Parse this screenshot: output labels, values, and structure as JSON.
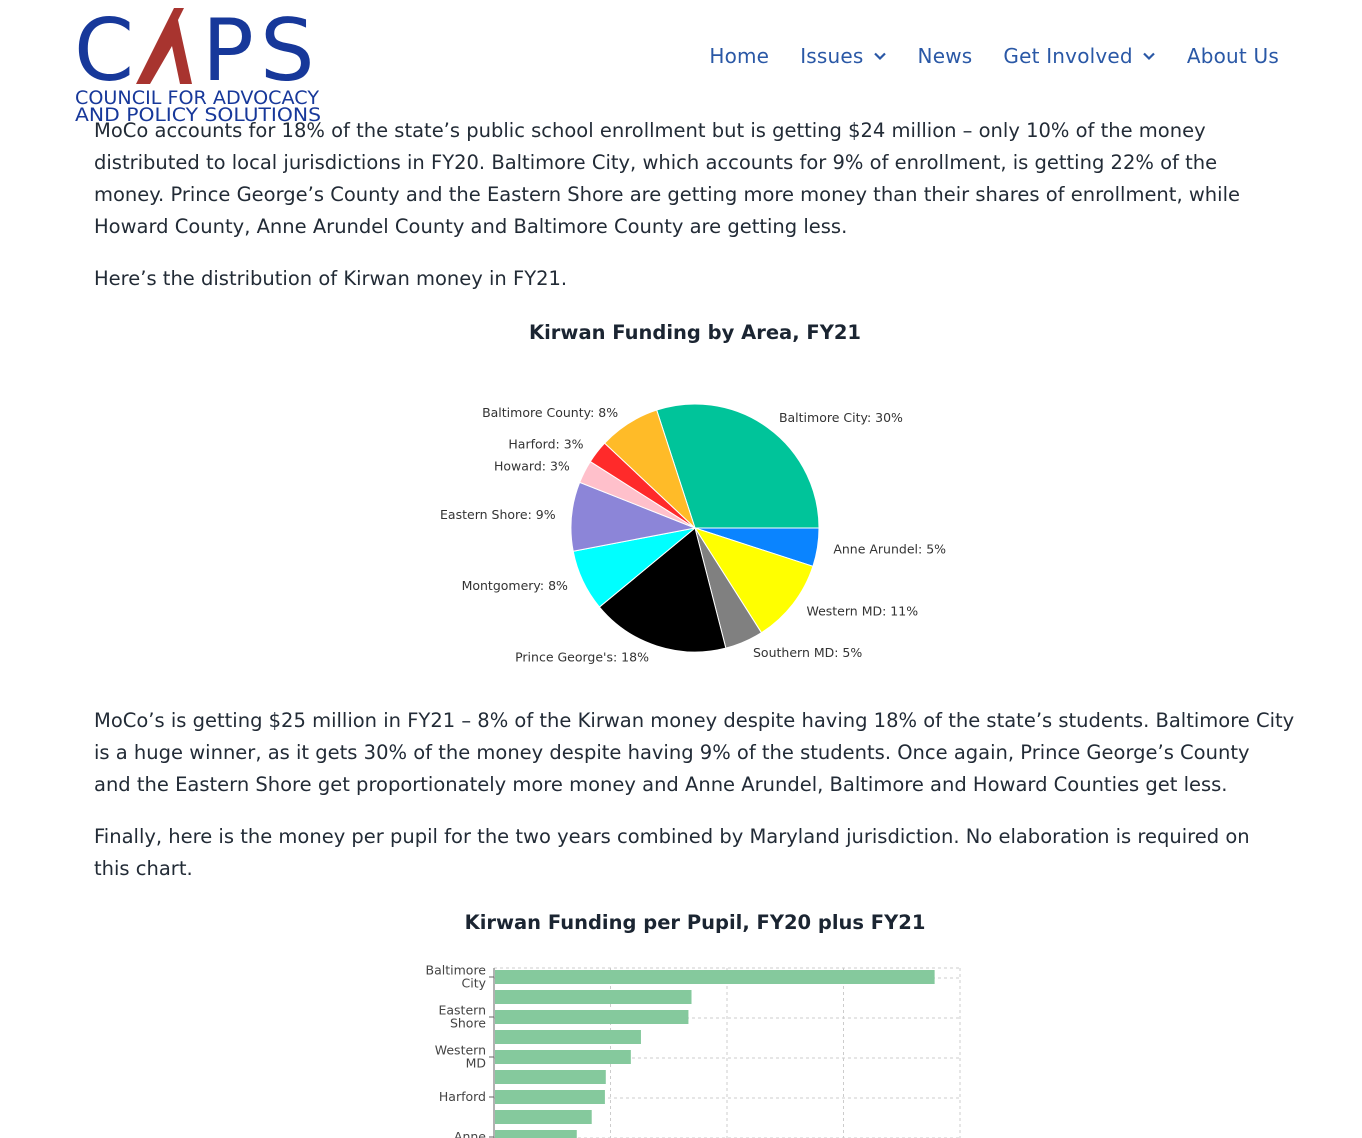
{
  "header": {
    "logo": {
      "wordmark": "CAPS",
      "line1": "COUNCIL FOR ADVOCACY",
      "line2": "AND POLICY SOLUTIONS"
    },
    "nav": [
      {
        "label": "Home",
        "has_dropdown": false
      },
      {
        "label": "Issues",
        "has_dropdown": true
      },
      {
        "label": "News",
        "has_dropdown": false
      },
      {
        "label": "Get Involved",
        "has_dropdown": true
      },
      {
        "label": "About Us",
        "has_dropdown": false
      }
    ],
    "nav_color": "#2a58a6",
    "icons": [
      "chevron-down-icon"
    ]
  },
  "article": {
    "para_top_partial": "MoCo accounts for 18% of the state’s public school enrollment but is getting $24 million – only 10% of the money",
    "para1_lines": [
      "distributed to local jurisdictions in FY20. Baltimore City, which accounts for 9% of enrollment, is getting 22% of the",
      "money. Prince George’s County and the Eastern Shore are getting more money than their shares of enrollment, while",
      "Howard County, Anne Arundel County and Baltimore County are getting less."
    ],
    "para2": "Here’s the distribution of Kirwan money in FY21.",
    "para3_lines": [
      "MoCo’s is getting $25 million in FY21 – 8% of the Kirwan money despite having 18% of the state’s students. Baltimore City",
      "is a huge winner, as it gets 30% of the money despite having 9% of the students. Once again, Prince George’s County",
      "and the Eastern Shore get proportionately more money and Anne Arundel, Baltimore and Howard Counties get less."
    ],
    "para4_lines": [
      "Finally, here is the money per pupil for the two years combined by Maryland jurisdiction. No elaboration is required on",
      "this chart."
    ]
  },
  "chart_data": [
    {
      "type": "pie",
      "title": "Kirwan Funding by Area, FY21",
      "slices": [
        {
          "label": "Baltimore City: 30%",
          "value": 30,
          "color": "#00c49a"
        },
        {
          "label": "Anne Arundel: 5%",
          "value": 5,
          "color": "#0a84ff"
        },
        {
          "label": "Western MD: 11%",
          "value": 11,
          "color": "#ffff00"
        },
        {
          "label": "Southern MD: 5%",
          "value": 5,
          "color": "#808080"
        },
        {
          "label": "Prince George's: 18%",
          "value": 18,
          "color": "#000000"
        },
        {
          "label": "Montgomery: 8%",
          "value": 8,
          "color": "#00ffff"
        },
        {
          "label": "Eastern Shore: 9%",
          "value": 9,
          "color": "#8c85d8"
        },
        {
          "label": "Howard: 3%",
          "value": 3,
          "color": "#ffc0cb"
        },
        {
          "label": "Harford: 3%",
          "value": 3,
          "color": "#ff2a2a"
        },
        {
          "label": "Baltimore County: 8%",
          "value": 8,
          "color": "#ffbb28"
        }
      ]
    },
    {
      "type": "bar",
      "orientation": "horizontal",
      "title": "Kirwan Funding per Pupil, FY20 plus FY21",
      "bar_color": "#85c99d",
      "grid": true,
      "categories": [
        {
          "lines": [
            "Baltimore",
            "City"
          ]
        },
        {
          "lines": []
        },
        {
          "lines": [
            "Eastern",
            "Shore"
          ]
        },
        {
          "lines": []
        },
        {
          "lines": [
            "Western",
            "MD"
          ]
        },
        {
          "lines": []
        },
        {
          "lines": [
            "Harford"
          ]
        },
        {
          "lines": []
        },
        {
          "lines": [
            "Anne"
          ]
        }
      ],
      "values": [
        100,
        44.7,
        44,
        33.2,
        30.9,
        25.2,
        25,
        22,
        18.6
      ],
      "xlim": [
        0,
        106
      ]
    }
  ]
}
